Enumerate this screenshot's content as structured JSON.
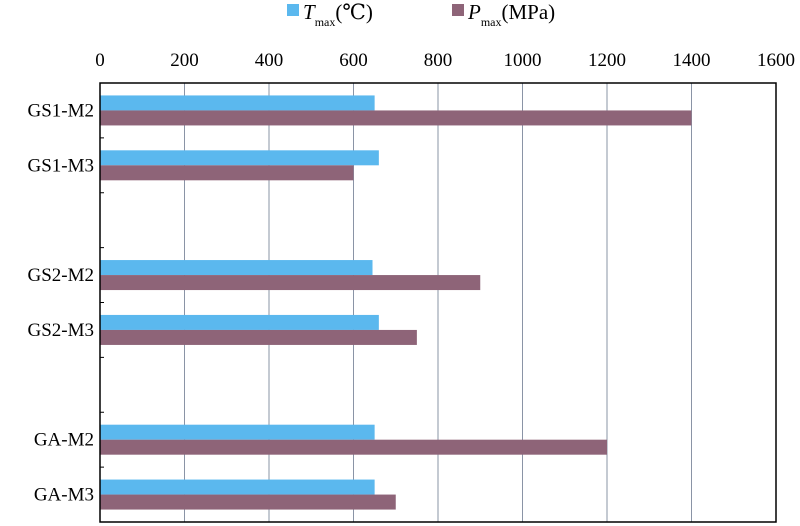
{
  "chart_data": {
    "type": "bar",
    "orientation": "horizontal",
    "title": "",
    "xlabel": "",
    "ylabel": "",
    "xlim": [
      0,
      1600
    ],
    "x_ticks": [
      0,
      200,
      400,
      600,
      800,
      1000,
      1200,
      1400,
      1600
    ],
    "x_axis_position": "top",
    "grid": true,
    "legend_position": "top",
    "categories": [
      "GS1-M2",
      "GS1-M3",
      "",
      "GS2-M2",
      "GS2-M3",
      "",
      "GA-M2",
      "GA-M3"
    ],
    "series": [
      {
        "name": "Tmax(℃)",
        "symbol": "T",
        "subscript": "max",
        "unit": "(℃)",
        "color": "#5bb8ee",
        "values": [
          650,
          660,
          null,
          645,
          660,
          null,
          650,
          650
        ]
      },
      {
        "name": "Pmax(MPa)",
        "symbol": "P",
        "subscript": "max",
        "unit": "(MPa)",
        "color": "#8e6478",
        "values": [
          1400,
          600,
          null,
          900,
          750,
          null,
          1200,
          700
        ]
      }
    ]
  }
}
